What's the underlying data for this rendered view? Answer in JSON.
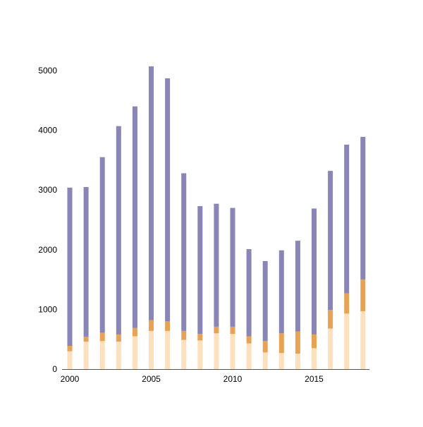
{
  "chart_data": {
    "type": "bar",
    "stacked": true,
    "title": "",
    "xlabel": "",
    "ylabel": "",
    "categories": [
      "2000",
      "2001",
      "2002",
      "2003",
      "2004",
      "2005",
      "2006",
      "2007",
      "2008",
      "2009",
      "2010",
      "2011",
      "2012",
      "2013",
      "2014",
      "2015",
      "2016",
      "2017",
      "2018"
    ],
    "x_tick_labels": [
      "2000",
      "2005",
      "2010",
      "2015"
    ],
    "y_ticks": [
      0,
      1000,
      2000,
      3000,
      4000,
      5000
    ],
    "ylim": [
      0,
      5080
    ],
    "grid": false,
    "legend": "none",
    "series": [
      {
        "color": "#fde0bd",
        "values": [
          300,
          460,
          470,
          460,
          550,
          640,
          640,
          490,
          480,
          600,
          590,
          430,
          280,
          270,
          260,
          350,
          680,
          930,
          970
        ]
      },
      {
        "color": "#e8a253",
        "values": [
          90,
          80,
          140,
          120,
          140,
          180,
          160,
          150,
          110,
          110,
          120,
          120,
          190,
          330,
          370,
          230,
          310,
          340,
          530
        ]
      },
      {
        "color": "#8985b6",
        "values": [
          2650,
          2510,
          2940,
          3490,
          3710,
          4250,
          4070,
          2640,
          2140,
          2060,
          1990,
          1460,
          1340,
          1390,
          1520,
          2110,
          2330,
          2490,
          2390
        ]
      }
    ]
  }
}
